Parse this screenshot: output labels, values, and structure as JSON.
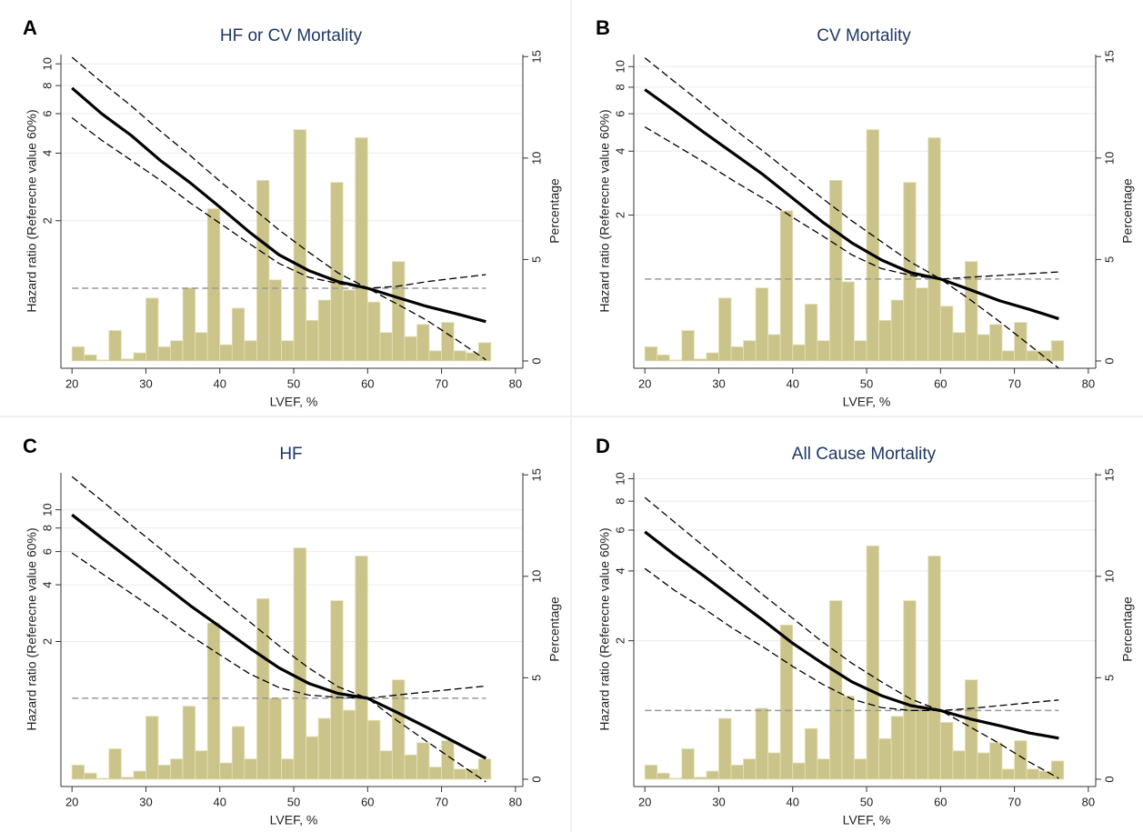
{
  "chart_data": [
    {
      "type": "line",
      "panel_label": "A",
      "title": "HF or CV Mortality",
      "xlabel": "LVEF, %",
      "ylabel": "Hazard ratio (Referecne value 60%)",
      "y2label": "Percentage",
      "xlim": [
        18.5,
        81
      ],
      "xticks": [
        20,
        30,
        40,
        50,
        60,
        70,
        80
      ],
      "ylog": true,
      "ylim": [
        0.44,
        11
      ],
      "yticks": [
        2,
        4,
        6,
        8,
        10
      ],
      "y2lim": [
        -0.36,
        15.1
      ],
      "y2ticks": [
        0,
        5,
        10,
        15
      ],
      "grid": true,
      "reference_line": 1,
      "reference_color": "#999999",
      "x": [
        20,
        24,
        28,
        32,
        36,
        40,
        44,
        48,
        52,
        56,
        60,
        64,
        68,
        72,
        76
      ],
      "series": [
        {
          "line_style": "solid",
          "color": "#000000",
          "values": [
            7.8,
            6.0,
            4.8,
            3.7,
            2.95,
            2.3,
            1.78,
            1.41,
            1.2,
            1.07,
            1.0,
            0.91,
            0.83,
            0.77,
            0.71
          ]
        },
        {
          "line_style": "dashed",
          "color": "#000000",
          "values": [
            10.7,
            8.3,
            6.5,
            5.0,
            3.9,
            3.0,
            2.34,
            1.82,
            1.45,
            1.17,
            1.0,
            1.02,
            1.07,
            1.11,
            1.15
          ]
        },
        {
          "line_style": "dashed",
          "color": "#000000",
          "values": [
            5.75,
            4.57,
            3.72,
            3.02,
            2.4,
            1.95,
            1.58,
            1.29,
            1.12,
            1.05,
            1.0,
            0.85,
            0.72,
            0.59,
            0.48
          ]
        }
      ],
      "histogram": {
        "axis": "y2",
        "color": "#cbc48a",
        "bins": [
          20,
          21.67,
          23.33,
          25,
          26.67,
          28.33,
          30,
          31.67,
          33.33,
          35,
          36.67,
          38.33,
          40,
          41.67,
          43.33,
          45,
          46.67,
          48.33,
          50,
          51.67,
          53.33,
          55,
          56.67,
          58.33,
          60,
          61.67,
          63.33,
          65,
          66.67,
          68.33,
          70,
          71.67,
          73.33,
          75,
          76.67
        ],
        "values": [
          0.7,
          0.3,
          0.05,
          1.5,
          0.1,
          0.4,
          3.1,
          0.7,
          1.0,
          3.6,
          1.4,
          7.5,
          0.8,
          2.6,
          1.0,
          8.9,
          4.0,
          1.0,
          11.4,
          2.0,
          3.0,
          8.8,
          3.5,
          11.0,
          2.9,
          1.4,
          4.9,
          1.2,
          1.8,
          0.5,
          1.9,
          0.5,
          0.4,
          0.9
        ]
      }
    },
    {
      "type": "line",
      "panel_label": "B",
      "title": "CV Mortality",
      "xlabel": "LVEF, %",
      "ylabel": "Hazard ratio (Referecne value 60%)",
      "y2label": "Percentage",
      "xlim": [
        18.5,
        81
      ],
      "xticks": [
        20,
        30,
        40,
        50,
        60,
        70,
        80
      ],
      "ylog": true,
      "ylim": [
        0.38,
        11.4
      ],
      "yticks": [
        2,
        4,
        6,
        8,
        10
      ],
      "y2lim": [
        -0.36,
        15.1
      ],
      "y2ticks": [
        0,
        5,
        10,
        15
      ],
      "grid": true,
      "reference_line": 1,
      "reference_color": "#999999",
      "x": [
        20,
        24,
        28,
        32,
        36,
        40,
        44,
        48,
        52,
        56,
        60,
        64,
        68,
        72,
        76
      ],
      "series": [
        {
          "line_style": "solid",
          "color": "#000000",
          "values": [
            7.8,
            6.2,
            4.9,
            3.9,
            3.1,
            2.4,
            1.86,
            1.48,
            1.23,
            1.07,
            1.0,
            0.89,
            0.79,
            0.72,
            0.65
          ]
        },
        {
          "line_style": "dashed",
          "color": "#000000",
          "values": [
            11,
            8.5,
            6.6,
            5.1,
            4.0,
            3.1,
            2.4,
            1.88,
            1.5,
            1.2,
            1.0,
            1.02,
            1.04,
            1.06,
            1.08
          ]
        },
        {
          "line_style": "dashed",
          "color": "#000000",
          "values": [
            5.2,
            4.3,
            3.55,
            2.9,
            2.4,
            1.95,
            1.6,
            1.3,
            1.12,
            1.04,
            1.0,
            0.8,
            0.63,
            0.49,
            0.38
          ]
        }
      ],
      "histogram": {
        "axis": "y2",
        "color": "#cbc48a",
        "bins": [
          20,
          21.67,
          23.33,
          25,
          26.67,
          28.33,
          30,
          31.67,
          33.33,
          35,
          36.67,
          38.33,
          40,
          41.67,
          43.33,
          45,
          46.67,
          48.33,
          50,
          51.67,
          53.33,
          55,
          56.67,
          58.33,
          60,
          61.67,
          63.33,
          65,
          66.67,
          68.33,
          70,
          71.67,
          73.33,
          75,
          76.67
        ],
        "values": [
          0.7,
          0.3,
          0.05,
          1.5,
          0.1,
          0.4,
          3.1,
          0.7,
          1.0,
          3.6,
          1.3,
          7.4,
          0.8,
          2.8,
          1.0,
          8.9,
          3.9,
          1.0,
          11.4,
          2.0,
          3.0,
          8.8,
          3.6,
          11.0,
          2.7,
          1.4,
          4.9,
          1.3,
          1.8,
          0.5,
          1.9,
          0.5,
          0.5,
          1.0
        ]
      }
    },
    {
      "type": "line",
      "panel_label": "C",
      "title": "HF",
      "xlabel": "LVEF, %",
      "ylabel": "Hazard ratio (Referecne value 60%)",
      "y2label": "Percentage",
      "xlim": [
        18.5,
        81
      ],
      "xticks": [
        20,
        30,
        40,
        50,
        60,
        70,
        80
      ],
      "ylog": true,
      "ylim": [
        0.34,
        15.7
      ],
      "yticks": [
        2,
        4,
        6,
        8,
        10
      ],
      "y2lim": [
        -0.36,
        15.1
      ],
      "y2ticks": [
        0,
        5,
        10,
        15
      ],
      "grid": true,
      "reference_line": 1,
      "reference_color": "#999999",
      "x": [
        20,
        24,
        28,
        32,
        36,
        40,
        44,
        48,
        52,
        56,
        60,
        64,
        68,
        72,
        76
      ],
      "series": [
        {
          "line_style": "solid",
          "color": "#000000",
          "values": [
            9.4,
            7.1,
            5.4,
            4.1,
            3.1,
            2.4,
            1.85,
            1.45,
            1.2,
            1.06,
            1.0,
            0.84,
            0.7,
            0.58,
            0.48
          ]
        },
        {
          "line_style": "dashed",
          "color": "#000000",
          "values": [
            15,
            11.2,
            8.3,
            6.2,
            4.6,
            3.4,
            2.55,
            1.9,
            1.45,
            1.15,
            1.0,
            1.04,
            1.08,
            1.12,
            1.16
          ]
        },
        {
          "line_style": "dashed",
          "color": "#000000",
          "values": [
            5.9,
            4.6,
            3.6,
            2.8,
            2.15,
            1.7,
            1.35,
            1.14,
            1.04,
            1.01,
            1.0,
            0.76,
            0.59,
            0.46,
            0.36
          ]
        }
      ],
      "histogram": {
        "axis": "y2",
        "color": "#cbc48a",
        "bins": [
          20,
          21.67,
          23.33,
          25,
          26.67,
          28.33,
          30,
          31.67,
          33.33,
          35,
          36.67,
          38.33,
          40,
          41.67,
          43.33,
          45,
          46.67,
          48.33,
          50,
          51.67,
          53.33,
          55,
          56.67,
          58.33,
          60,
          61.67,
          63.33,
          65,
          66.67,
          68.33,
          70,
          71.67,
          73.33,
          75,
          76.67
        ],
        "values": [
          0.7,
          0.3,
          0.05,
          1.5,
          0.1,
          0.4,
          3.1,
          0.7,
          1.0,
          3.6,
          1.4,
          7.7,
          0.8,
          2.6,
          1.0,
          8.9,
          4.0,
          1.0,
          11.4,
          2.1,
          3.0,
          8.8,
          3.4,
          11.0,
          2.9,
          1.4,
          4.9,
          1.2,
          1.8,
          0.6,
          1.9,
          0.5,
          0.5,
          1.0
        ]
      }
    },
    {
      "type": "line",
      "panel_label": "D",
      "title": "All Cause Mortality",
      "xlabel": "LVEF, %",
      "ylabel": "Hazard ratio (Referecne value 60%)",
      "y2label": "Percentage",
      "xlim": [
        18.5,
        81
      ],
      "xticks": [
        20,
        30,
        40,
        50,
        60,
        70,
        80
      ],
      "ylog": true,
      "ylim": [
        0.47,
        10.6
      ],
      "yticks": [
        2,
        4,
        6,
        8,
        10
      ],
      "y2lim": [
        -0.36,
        15.1
      ],
      "y2ticks": [
        0,
        5,
        10,
        15
      ],
      "grid": true,
      "reference_line": 1,
      "reference_color": "#999999",
      "x": [
        20,
        24,
        28,
        32,
        36,
        40,
        44,
        48,
        52,
        56,
        60,
        64,
        68,
        72,
        76
      ],
      "series": [
        {
          "line_style": "solid",
          "color": "#000000",
          "values": [
            5.9,
            4.7,
            3.8,
            3.05,
            2.45,
            1.95,
            1.6,
            1.33,
            1.16,
            1.05,
            1.0,
            0.92,
            0.86,
            0.8,
            0.76
          ]
        },
        {
          "line_style": "dashed",
          "color": "#000000",
          "values": [
            8.3,
            6.5,
            5.1,
            4.0,
            3.15,
            2.5,
            1.98,
            1.6,
            1.33,
            1.12,
            1.0,
            1.02,
            1.05,
            1.08,
            1.11
          ]
        },
        {
          "line_style": "dashed",
          "color": "#000000",
          "values": [
            4.1,
            3.3,
            2.75,
            2.25,
            1.88,
            1.55,
            1.3,
            1.12,
            1.03,
            1.0,
            1.0,
            0.85,
            0.72,
            0.6,
            0.51
          ]
        }
      ],
      "histogram": {
        "axis": "y2",
        "color": "#cbc48a",
        "bins": [
          20,
          21.67,
          23.33,
          25,
          26.67,
          28.33,
          30,
          31.67,
          33.33,
          35,
          36.67,
          38.33,
          40,
          41.67,
          43.33,
          45,
          46.67,
          48.33,
          50,
          51.67,
          53.33,
          55,
          56.67,
          58.33,
          60,
          61.67,
          63.33,
          65,
          66.67,
          68.33,
          70,
          71.67,
          73.33,
          75,
          76.67
        ],
        "values": [
          0.7,
          0.3,
          0.05,
          1.5,
          0.1,
          0.4,
          3.0,
          0.7,
          1.0,
          3.5,
          1.3,
          7.6,
          0.8,
          2.5,
          1.0,
          8.8,
          4.1,
          1.0,
          11.5,
          2.0,
          3.1,
          8.8,
          3.6,
          11.0,
          2.8,
          1.4,
          4.9,
          1.3,
          1.8,
          0.5,
          1.9,
          0.5,
          0.4,
          0.9
        ]
      }
    }
  ]
}
